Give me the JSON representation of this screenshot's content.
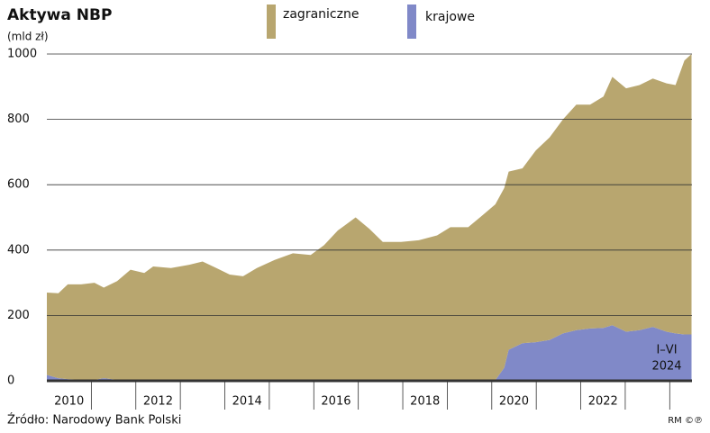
{
  "chart_data": {
    "type": "stacked-area",
    "title": "Aktywa NBP",
    "subtitle": "(mld zł)",
    "x": [
      2010.0,
      2010.26,
      2010.47,
      2010.77,
      2011.07,
      2011.28,
      2011.58,
      2011.88,
      2012.19,
      2012.39,
      2012.79,
      2013.2,
      2013.5,
      2013.81,
      2014.11,
      2014.41,
      2014.72,
      2015.12,
      2015.53,
      2015.93,
      2016.23,
      2016.54,
      2016.94,
      2017.25,
      2017.55,
      2017.96,
      2018.36,
      2018.77,
      2019.07,
      2019.47,
      2019.78,
      2020.08,
      2020.28,
      2020.38,
      2020.69,
      2020.99,
      2021.3,
      2021.6,
      2021.9,
      2022.21,
      2022.51,
      2022.71,
      2023.02,
      2023.32,
      2023.62,
      2023.93,
      2024.13,
      2024.33,
      2024.49
    ],
    "series": [
      {
        "name": "zagraniczne",
        "color": "#b8a66f",
        "values": [
          252,
          260,
          290,
          292,
          297,
          277,
          302,
          338,
          328,
          348,
          343,
          353,
          363,
          343,
          323,
          318,
          343,
          368,
          388,
          383,
          413,
          458,
          497,
          462,
          422,
          422,
          427,
          442,
          468,
          468,
          503,
          538,
          550,
          545,
          535,
          587,
          620,
          655,
          690,
          685,
          708,
          760,
          745,
          750,
          760,
          760,
          760,
          838,
          858
        ]
      },
      {
        "name": "krajowe",
        "color": "#8089c8",
        "values": [
          18,
          8,
          5,
          3,
          3,
          8,
          3,
          2,
          2,
          2,
          2,
          2,
          2,
          2,
          2,
          2,
          2,
          2,
          2,
          2,
          2,
          2,
          3,
          3,
          3,
          3,
          3,
          3,
          2,
          2,
          2,
          2,
          40,
          95,
          115,
          118,
          125,
          145,
          155,
          160,
          162,
          170,
          150,
          155,
          165,
          150,
          145,
          142,
          142
        ]
      }
    ],
    "xlim": [
      2010,
      2024.5
    ],
    "xticks": [
      2011,
      2012,
      2013,
      2014,
      2015,
      2016,
      2017,
      2018,
      2019,
      2020,
      2021,
      2022,
      2023,
      2024
    ],
    "xlabels": [
      2010,
      2012,
      2014,
      2016,
      2018,
      2020,
      2022
    ],
    "ylim": [
      0,
      1000
    ],
    "yticks": [
      0,
      200,
      400,
      600,
      800,
      1000
    ],
    "grid": true,
    "annotation": [
      "I–VI",
      "2024"
    ],
    "source": "Źródło: Narodowy Bank Polski",
    "credit": "RM ©℗"
  }
}
